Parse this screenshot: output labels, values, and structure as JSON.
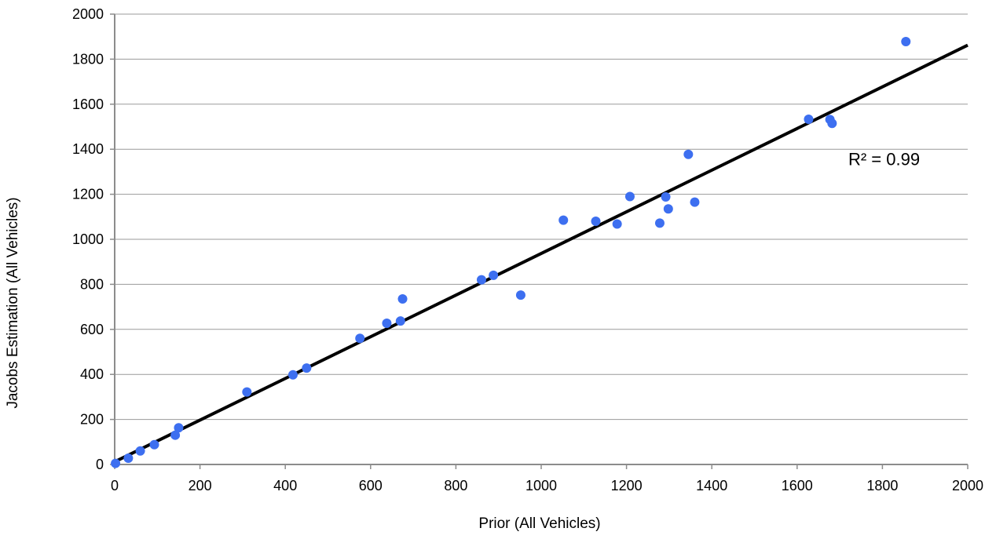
{
  "chart_data": {
    "type": "scatter",
    "title": "",
    "xlabel": "Prior (All Vehicles)",
    "ylabel": "Jacobs Estimation (All Vehicles)",
    "xlim": [
      0,
      2000
    ],
    "ylim": [
      0,
      2000
    ],
    "xticks": [
      0,
      200,
      400,
      600,
      800,
      1000,
      1200,
      1400,
      1600,
      1800,
      2000
    ],
    "yticks": [
      0,
      200,
      400,
      600,
      800,
      1000,
      1200,
      1400,
      1600,
      1800,
      2000
    ],
    "grid": {
      "horizontal": true,
      "vertical": false
    },
    "legend": "none",
    "series": [
      {
        "color": "#3d6ff0",
        "points": [
          [
            2,
            5
          ],
          [
            32,
            28
          ],
          [
            60,
            60
          ],
          [
            93,
            88
          ],
          [
            142,
            130
          ],
          [
            150,
            163
          ],
          [
            310,
            322
          ],
          [
            418,
            398
          ],
          [
            450,
            428
          ],
          [
            575,
            560
          ],
          [
            638,
            627
          ],
          [
            670,
            637
          ],
          [
            675,
            735
          ],
          [
            860,
            820
          ],
          [
            888,
            840
          ],
          [
            952,
            752
          ],
          [
            1052,
            1085
          ],
          [
            1128,
            1080
          ],
          [
            1178,
            1068
          ],
          [
            1208,
            1190
          ],
          [
            1278,
            1072
          ],
          [
            1292,
            1188
          ],
          [
            1298,
            1135
          ],
          [
            1345,
            1377
          ],
          [
            1360,
            1165
          ],
          [
            1627,
            1533
          ],
          [
            1677,
            1532
          ],
          [
            1682,
            1515
          ],
          [
            1855,
            1878
          ]
        ]
      }
    ],
    "trendline": {
      "color": "#000000",
      "x": [
        0,
        2000
      ],
      "y": [
        12,
        1862
      ]
    },
    "annotation": {
      "text": "R² = 0.99",
      "x": 1720,
      "y": 1330
    }
  }
}
